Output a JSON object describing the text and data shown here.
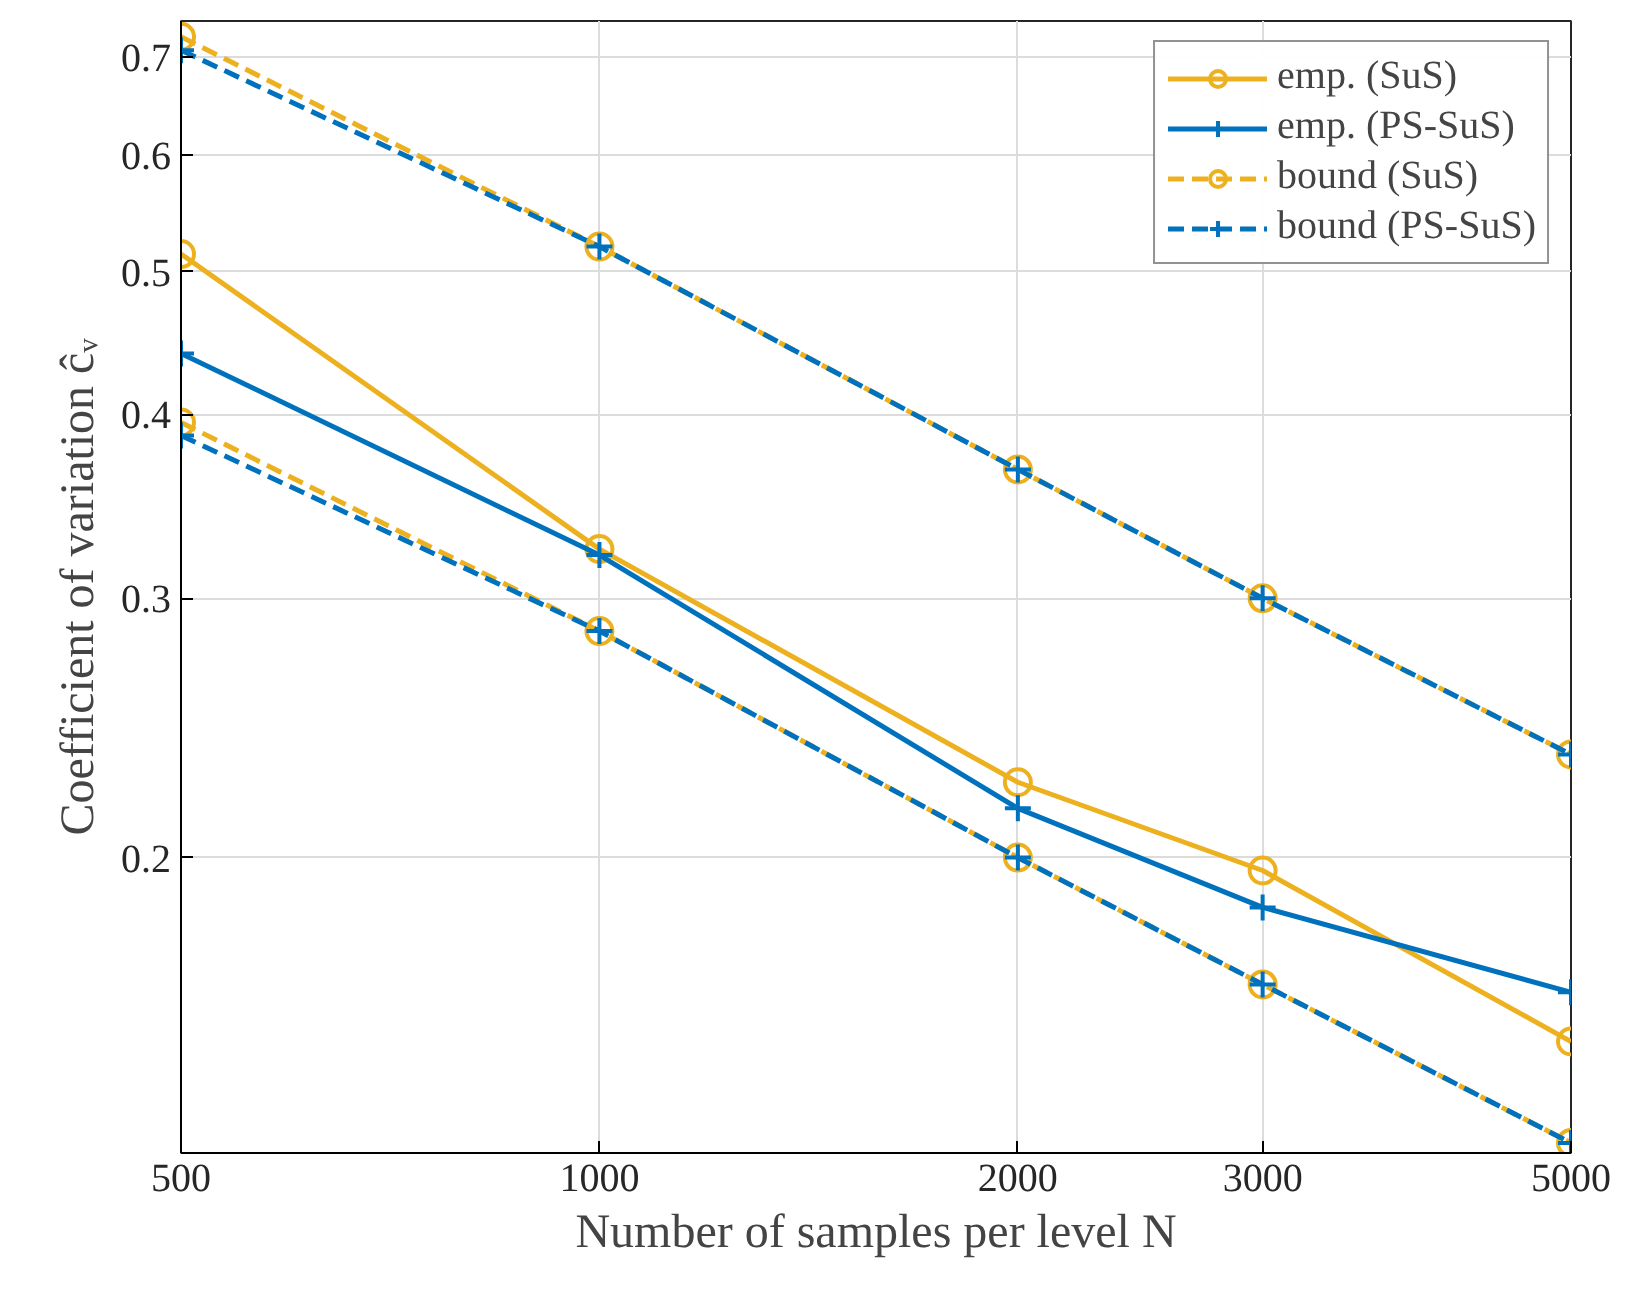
{
  "chart_data": {
    "type": "line",
    "xlabel": "Number of samples per level N",
    "ylabel": "Coefficient of variation ĉᵥ",
    "x": [
      500,
      1000,
      2000,
      3000,
      5000
    ],
    "series": [
      {
        "name": "emp. (SuS)",
        "color": "#edb120",
        "marker": "circle",
        "line_style": "solid",
        "values": [
          0.514,
          0.324,
          0.225,
          0.196,
          0.15
        ]
      },
      {
        "name": "emp. (PS-SuS)",
        "color": "#0072bd",
        "marker": "cross",
        "line_style": "solid",
        "values": [
          0.44,
          0.321,
          0.216,
          0.185,
          0.162
        ]
      },
      {
        "name": "bound (SuS)",
        "color": "#edb120",
        "marker": "circle",
        "line_style": "dashed",
        "values": [
          0.722,
          0.52,
          0.367,
          0.3,
          0.235
        ]
      },
      {
        "name": "bound (PS-SuS)",
        "color": "#0072bd",
        "marker": "cross",
        "line_style": "dashed",
        "values": [
          0.707,
          0.52,
          0.367,
          0.3,
          0.235
        ]
      },
      {
        "color": "#edb120",
        "marker": "circle",
        "line_style": "dashed",
        "values": [
          0.395,
          0.285,
          0.2,
          0.164,
          0.128
        ]
      },
      {
        "color": "#0072bd",
        "marker": "cross",
        "line_style": "dashed",
        "values": [
          0.387,
          0.285,
          0.2,
          0.164,
          0.128
        ]
      }
    ],
    "log": "xy",
    "xlim": [
      500,
      5000
    ],
    "ylim": [
      0.126,
      0.74
    ],
    "xticks": [
      500,
      1000,
      2000,
      3000,
      5000
    ],
    "yticks": [
      0.2,
      0.3,
      0.4,
      0.5,
      0.6,
      0.7
    ],
    "grid": true,
    "legend": "top right"
  }
}
